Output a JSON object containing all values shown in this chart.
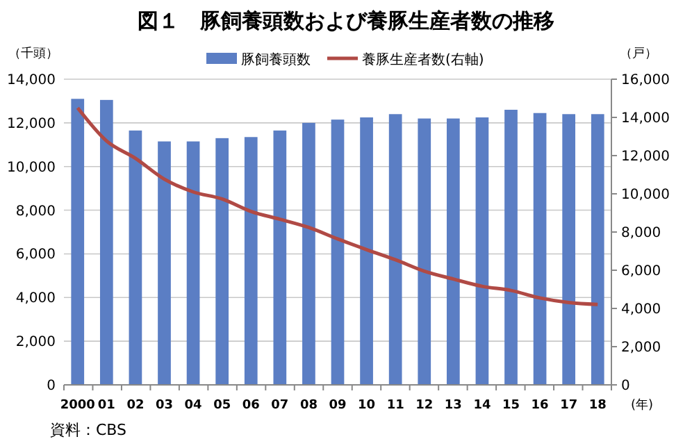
{
  "chart_data": {
    "type": "bar",
    "title": "図１　豚飼養頭数および養豚生産者数の推移",
    "xlabel": "(年)",
    "ylabel": "（千頭）",
    "y2label": "（戸）",
    "categories": [
      "2000",
      "01",
      "02",
      "03",
      "04",
      "05",
      "06",
      "07",
      "08",
      "09",
      "10",
      "11",
      "12",
      "13",
      "14",
      "15",
      "16",
      "17",
      "18"
    ],
    "series": [
      {
        "name": "豚飼養頭数",
        "color": "#5b7ec4",
        "values": [
          13100,
          13050,
          11650,
          11150,
          11150,
          11300,
          11350,
          11650,
          12000,
          12150,
          12250,
          12400,
          12200,
          12200,
          12250,
          12600,
          12450,
          12400,
          12400
        ]
      },
      {
        "name": "養豚生産者数(右軸)",
        "type": "line",
        "axis": "y2",
        "color": "#b04a45",
        "values": [
          14500,
          12770,
          11860,
          10770,
          10100,
          9730,
          9080,
          8670,
          8240,
          7640,
          7080,
          6550,
          5950,
          5540,
          5160,
          4940,
          4550,
          4310,
          4210
        ]
      }
    ],
    "ylim": [
      0,
      14000
    ],
    "yticks": [
      {
        "value": 0,
        "label": "0"
      },
      {
        "value": 2000,
        "label": "2,000"
      },
      {
        "value": 4000,
        "label": "4,000"
      },
      {
        "value": 6000,
        "label": "6,000"
      },
      {
        "value": 8000,
        "label": "8,000"
      },
      {
        "value": 10000,
        "label": "10,000"
      },
      {
        "value": 12000,
        "label": "12,000"
      },
      {
        "value": 14000,
        "label": "14,000"
      }
    ],
    "y2lim": [
      0,
      16000
    ],
    "y2ticks": [
      {
        "value": 0,
        "label": "0"
      },
      {
        "value": 2000,
        "label": "2,000"
      },
      {
        "value": 4000,
        "label": "4,000"
      },
      {
        "value": 6000,
        "label": "6,000"
      },
      {
        "value": 8000,
        "label": "8,000"
      },
      {
        "value": 10000,
        "label": "10,000"
      },
      {
        "value": 12000,
        "label": "12,000"
      },
      {
        "value": 14000,
        "label": "14,000"
      },
      {
        "value": 16000,
        "label": "16,000"
      }
    ],
    "grid": "y",
    "legend": "top",
    "annotations": [
      "資料：CBS"
    ]
  }
}
